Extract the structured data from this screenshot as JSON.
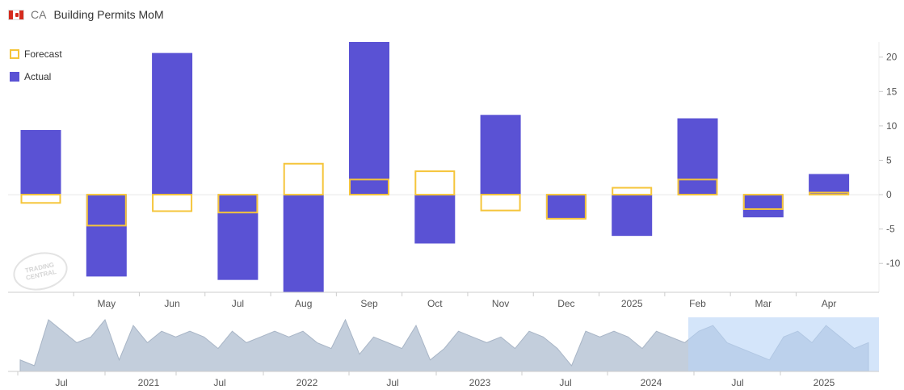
{
  "header": {
    "country": "CA",
    "title": "Building Permits MoM"
  },
  "legend": {
    "forecast": "Forecast",
    "actual": "Actual"
  },
  "watermark": "TRADING CENTRAL",
  "colors": {
    "actual": "#5a52d4",
    "forecast": "#f5c53b",
    "navigator_fill": "#b9c6d6",
    "navigator_window": "#b7d3f7"
  },
  "chart_data": {
    "type": "bar",
    "categories": [
      "",
      "May",
      "Jun",
      "Jul",
      "Aug",
      "Sep",
      "Oct",
      "Nov",
      "Dec",
      "2025",
      "Feb",
      "Mar",
      "Apr"
    ],
    "series": [
      {
        "name": "Actual",
        "values": [
          9.4,
          -11.9,
          20.6,
          -12.4,
          -14.2,
          22.2,
          -7.1,
          11.6,
          -3.4,
          -6.0,
          11.1,
          -3.3,
          3.0
        ]
      },
      {
        "name": "Forecast",
        "values": [
          -1.2,
          -4.5,
          -2.4,
          -2.6,
          4.5,
          2.2,
          3.4,
          -2.3,
          -3.5,
          1.0,
          2.2,
          -2.1,
          0.3
        ]
      }
    ],
    "ylim": [
      -14.2,
      22.2
    ],
    "yticks": [
      20,
      15,
      10,
      5,
      0,
      -5,
      -10
    ],
    "ytick_labels": [
      "20",
      "15",
      "10",
      "5",
      "0",
      "-5",
      "-10"
    ],
    "y_axis_position": "right",
    "legend_position": "top-left",
    "navigator": {
      "type": "area",
      "tick_labels": [
        "Jul",
        "2021",
        "Jul",
        "2022",
        "Jul",
        "2023",
        "Jul",
        "2024",
        "Jul",
        "2025"
      ],
      "values": [
        2,
        1,
        9,
        7,
        5,
        6,
        9,
        2,
        8,
        5,
        7,
        6,
        7,
        6,
        4,
        7,
        5,
        6,
        7,
        6,
        7,
        5,
        4,
        9,
        3,
        6,
        5,
        4,
        8,
        2,
        4,
        7,
        6,
        5,
        6,
        4,
        7,
        6,
        4,
        1,
        7,
        6,
        7,
        6,
        4,
        7,
        6,
        5,
        7,
        8,
        5,
        4,
        3,
        2,
        6,
        7,
        5,
        8,
        6,
        4,
        5
      ],
      "selected_range": [
        "Apr",
        "Apr 2025"
      ]
    }
  }
}
